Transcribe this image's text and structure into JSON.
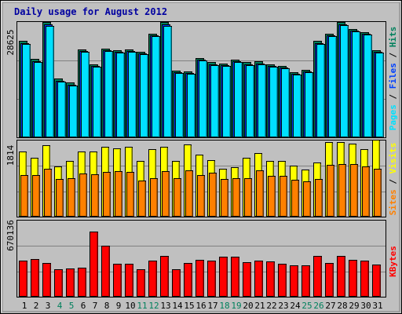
{
  "title": "Daily usage for August 2012",
  "colors": {
    "background": "#c0c0c0",
    "title": "#0000a0",
    "hits": "#00805c",
    "files": "#0040ff",
    "pages": "#00e0ff",
    "visits": "#ffff00",
    "sites": "#ff8000",
    "kbytes": "#ff0000",
    "weekend": "#00805c",
    "weekday": "#000000"
  },
  "chart_data": [
    {
      "type": "bar",
      "title": "Daily usage for August 2012",
      "categories": [
        "1",
        "2",
        "3",
        "4",
        "5",
        "6",
        "7",
        "8",
        "9",
        "10",
        "11",
        "12",
        "13",
        "14",
        "15",
        "16",
        "17",
        "18",
        "19",
        "20",
        "21",
        "22",
        "23",
        "24",
        "25",
        "26",
        "27",
        "28",
        "29",
        "30",
        "31"
      ],
      "weekend_days": [
        "4",
        "5",
        "11",
        "12",
        "18",
        "19",
        "25",
        "26"
      ],
      "y_max_label": "28625",
      "ylim": [
        0,
        28625
      ],
      "legend": [
        "Pages",
        "Files",
        "Hits"
      ],
      "series": [
        {
          "name": "Hits",
          "values": [
            23900,
            19400,
            28600,
            14600,
            13600,
            21900,
            18200,
            22000,
            21600,
            21800,
            21200,
            25700,
            28600,
            16500,
            16400,
            19600,
            18600,
            18300,
            19300,
            18600,
            18800,
            18200,
            17700,
            16200,
            16800,
            23900,
            25700,
            28600,
            26900,
            26100,
            21600
          ]
        },
        {
          "name": "Files",
          "values": [
            23400,
            18900,
            28100,
            14100,
            13100,
            21500,
            17700,
            21600,
            21200,
            21400,
            20800,
            25300,
            28100,
            16100,
            16000,
            19200,
            18200,
            17900,
            18900,
            18200,
            18400,
            17800,
            17300,
            15800,
            16400,
            23400,
            25300,
            28100,
            26500,
            25700,
            21200
          ]
        },
        {
          "name": "Pages",
          "values": [
            23200,
            18700,
            27700,
            13900,
            12900,
            21300,
            17500,
            21400,
            21000,
            21200,
            20600,
            25100,
            27700,
            15900,
            15800,
            19000,
            18000,
            17700,
            18700,
            18000,
            18200,
            17600,
            17100,
            15600,
            16200,
            23200,
            25100,
            27800,
            26300,
            25500,
            21000
          ]
        }
      ]
    },
    {
      "type": "bar",
      "categories": [
        "1",
        "2",
        "3",
        "4",
        "5",
        "6",
        "7",
        "8",
        "9",
        "10",
        "11",
        "12",
        "13",
        "14",
        "15",
        "16",
        "17",
        "18",
        "19",
        "20",
        "21",
        "22",
        "23",
        "24",
        "25",
        "26",
        "27",
        "28",
        "29",
        "30",
        "31"
      ],
      "y_max_label": "1814",
      "ylim": [
        0,
        1814
      ],
      "legend": [
        "Sites",
        "Visits"
      ],
      "series": [
        {
          "name": "Visits",
          "values": [
            1550,
            1400,
            1710,
            1200,
            1330,
            1560,
            1560,
            1660,
            1620,
            1660,
            1330,
            1610,
            1660,
            1320,
            1720,
            1470,
            1350,
            1150,
            1170,
            1400,
            1520,
            1320,
            1320,
            1220,
            1120,
            1290,
            1780,
            1780,
            1730,
            1610,
            1830
          ]
        },
        {
          "name": "Sites",
          "values": [
            1000,
            1000,
            1150,
            900,
            910,
            1030,
            1010,
            1070,
            1090,
            1070,
            860,
            910,
            1090,
            910,
            1100,
            1000,
            1050,
            900,
            910,
            910,
            1100,
            980,
            970,
            880,
            850,
            890,
            1230,
            1260,
            1260,
            1190,
            1140
          ]
        }
      ]
    },
    {
      "type": "bar",
      "categories": [
        "1",
        "2",
        "3",
        "4",
        "5",
        "6",
        "7",
        "8",
        "9",
        "10",
        "11",
        "12",
        "13",
        "14",
        "15",
        "16",
        "17",
        "18",
        "19",
        "20",
        "21",
        "22",
        "23",
        "24",
        "25",
        "26",
        "27",
        "28",
        "29",
        "30",
        "31"
      ],
      "y_max_label": "670136",
      "ylim": [
        0,
        670136
      ],
      "legend": [
        "KBytes"
      ],
      "series": [
        {
          "name": "KBytes",
          "values": [
            315000,
            332000,
            298000,
            240000,
            250000,
            258000,
            572000,
            450000,
            290000,
            293000,
            242000,
            321000,
            359000,
            241000,
            297000,
            322000,
            317000,
            353000,
            350000,
            303000,
            316000,
            311000,
            287000,
            276000,
            278000,
            357000,
            300000,
            357000,
            323000,
            321000,
            282000
          ]
        }
      ]
    }
  ]
}
